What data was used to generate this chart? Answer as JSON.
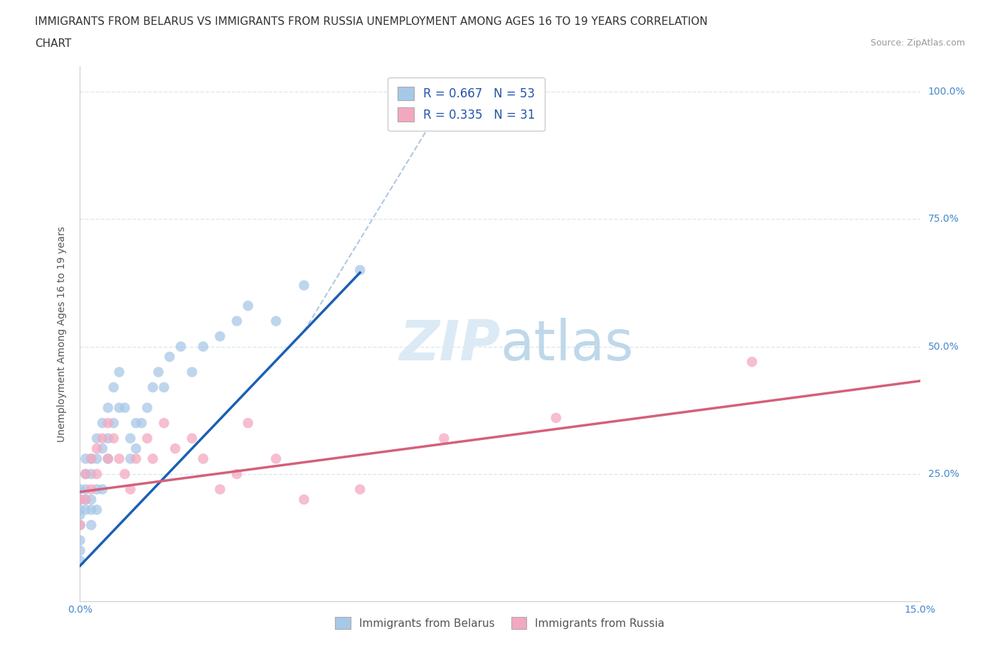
{
  "title_line1": "IMMIGRANTS FROM BELARUS VS IMMIGRANTS FROM RUSSIA UNEMPLOYMENT AMONG AGES 16 TO 19 YEARS CORRELATION",
  "title_line2": "CHART",
  "source_text": "Source: ZipAtlas.com",
  "ylabel": "Unemployment Among Ages 16 to 19 years",
  "xlim": [
    0.0,
    0.15
  ],
  "ylim": [
    0.0,
    1.05
  ],
  "watermark": "ZIPatlas",
  "belarus_color": "#a8c8e8",
  "russia_color": "#f4a8c0",
  "belarus_line_color": "#1a5fb4",
  "russia_line_color": "#d4607a",
  "dashed_line_color": "#b0c8e0",
  "grid_color": "#dce8f0",
  "background_color": "#ffffff",
  "belarus_x": [
    0.0,
    0.0,
    0.0,
    0.0,
    0.0,
    0.0,
    0.0,
    0.0,
    0.001,
    0.001,
    0.001,
    0.001,
    0.001,
    0.002,
    0.002,
    0.002,
    0.002,
    0.002,
    0.003,
    0.003,
    0.003,
    0.003,
    0.004,
    0.004,
    0.004,
    0.005,
    0.005,
    0.005,
    0.006,
    0.006,
    0.007,
    0.007,
    0.008,
    0.009,
    0.009,
    0.01,
    0.01,
    0.011,
    0.012,
    0.013,
    0.014,
    0.015,
    0.016,
    0.018,
    0.02,
    0.022,
    0.025,
    0.028,
    0.03,
    0.035,
    0.04,
    0.05,
    0.065
  ],
  "belarus_y": [
    0.18,
    0.2,
    0.22,
    0.15,
    0.12,
    0.1,
    0.08,
    0.17,
    0.25,
    0.22,
    0.18,
    0.28,
    0.2,
    0.28,
    0.25,
    0.2,
    0.18,
    0.15,
    0.32,
    0.28,
    0.22,
    0.18,
    0.35,
    0.3,
    0.22,
    0.38,
    0.32,
    0.28,
    0.42,
    0.35,
    0.45,
    0.38,
    0.38,
    0.32,
    0.28,
    0.35,
    0.3,
    0.35,
    0.38,
    0.42,
    0.45,
    0.42,
    0.48,
    0.5,
    0.45,
    0.5,
    0.52,
    0.55,
    0.58,
    0.55,
    0.62,
    0.65,
    0.98
  ],
  "russia_x": [
    0.0,
    0.0,
    0.001,
    0.001,
    0.002,
    0.002,
    0.003,
    0.003,
    0.004,
    0.005,
    0.005,
    0.006,
    0.007,
    0.008,
    0.009,
    0.01,
    0.012,
    0.013,
    0.015,
    0.017,
    0.02,
    0.022,
    0.025,
    0.028,
    0.03,
    0.035,
    0.04,
    0.05,
    0.065,
    0.085,
    0.12
  ],
  "russia_y": [
    0.2,
    0.15,
    0.25,
    0.2,
    0.28,
    0.22,
    0.3,
    0.25,
    0.32,
    0.35,
    0.28,
    0.32,
    0.28,
    0.25,
    0.22,
    0.28,
    0.32,
    0.28,
    0.35,
    0.3,
    0.32,
    0.28,
    0.22,
    0.25,
    0.35,
    0.28,
    0.2,
    0.22,
    0.32,
    0.36,
    0.47
  ],
  "title_fontsize": 11,
  "axis_label_fontsize": 10,
  "tick_fontsize": 10,
  "source_fontsize": 9
}
